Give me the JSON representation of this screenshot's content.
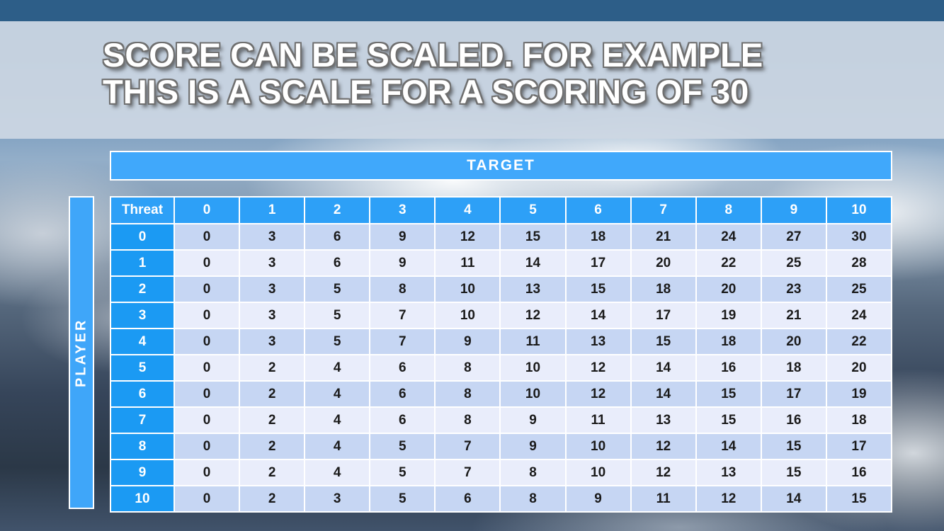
{
  "title": {
    "line1": "SCORE CAN BE SCALED. FOR EXAMPLE",
    "line2": "THIS IS A SCALE FOR A SCORING OF 30"
  },
  "table": {
    "target_label": "TARGET",
    "player_label": "PLAYER",
    "threat_label": "Threat",
    "column_headers": [
      "0",
      "1",
      "2",
      "3",
      "4",
      "5",
      "6",
      "7",
      "8",
      "9",
      "10"
    ],
    "row_headers": [
      "0",
      "1",
      "2",
      "3",
      "4",
      "5",
      "6",
      "7",
      "8",
      "9",
      "10"
    ],
    "rows": [
      [
        0,
        3,
        6,
        9,
        12,
        15,
        18,
        21,
        24,
        27,
        30
      ],
      [
        0,
        3,
        6,
        9,
        11,
        14,
        17,
        20,
        22,
        25,
        28
      ],
      [
        0,
        3,
        5,
        8,
        10,
        13,
        15,
        18,
        20,
        23,
        25
      ],
      [
        0,
        3,
        5,
        7,
        10,
        12,
        14,
        17,
        19,
        21,
        24
      ],
      [
        0,
        3,
        5,
        7,
        9,
        11,
        13,
        15,
        18,
        20,
        22
      ],
      [
        0,
        2,
        4,
        6,
        8,
        10,
        12,
        14,
        16,
        18,
        20
      ],
      [
        0,
        2,
        4,
        6,
        8,
        10,
        12,
        14,
        15,
        17,
        19
      ],
      [
        0,
        2,
        4,
        6,
        8,
        9,
        11,
        13,
        15,
        16,
        18
      ],
      [
        0,
        2,
        4,
        5,
        7,
        9,
        10,
        12,
        14,
        15,
        17
      ],
      [
        0,
        2,
        4,
        5,
        7,
        8,
        10,
        12,
        13,
        15,
        16
      ],
      [
        0,
        2,
        3,
        5,
        6,
        8,
        9,
        11,
        12,
        14,
        15
      ]
    ]
  },
  "colors": {
    "top_strip": "#2d5e88",
    "banner": "#cdd7e3",
    "target_bar_blue": "#40a8fb",
    "column_header_blue": "#2da0f7",
    "row_header_blue": "#1b9af3",
    "row_even": "#c6d6f3",
    "row_odd": "#e9edfb",
    "grid_line": "#ffffff",
    "body_text": "#1a1a1a"
  }
}
